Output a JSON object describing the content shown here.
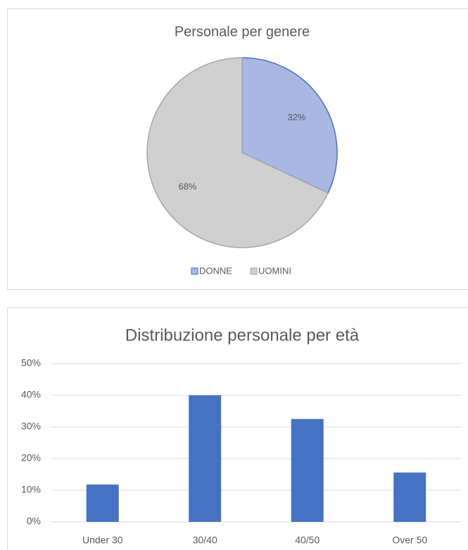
{
  "chart_data": [
    {
      "type": "pie",
      "title": "Personale per genere",
      "categories": [
        "DONNE",
        "UOMINI"
      ],
      "values": [
        32,
        68
      ],
      "value_labels": [
        "32%",
        "68%"
      ],
      "colors": [
        "#a9b8e2",
        "#d0d0d0"
      ],
      "edge_colors": [
        "#4472c4",
        "#a6a6a6"
      ],
      "legend": "bottom"
    },
    {
      "type": "bar",
      "title": "Distribuzione personale per età",
      "categories": [
        "Under 30",
        "30/40",
        "40/50",
        "Over 50"
      ],
      "values": [
        11.8,
        40,
        32.5,
        15.6
      ],
      "color": "#4472c4",
      "ylim": [
        0,
        50
      ],
      "yticks": [
        {
          "value": 0,
          "label": "0%"
        },
        {
          "value": 10,
          "label": "10%"
        },
        {
          "value": 20,
          "label": "20%"
        },
        {
          "value": 30,
          "label": "30%"
        },
        {
          "value": 40,
          "label": "40%"
        },
        {
          "value": 50,
          "label": "50%"
        }
      ],
      "grid": true
    }
  ]
}
